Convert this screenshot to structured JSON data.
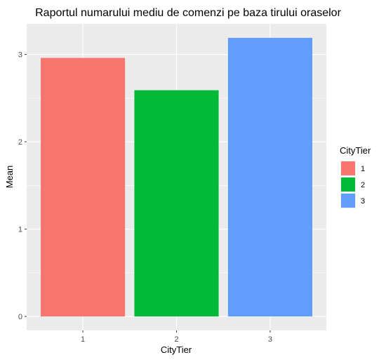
{
  "chart_data": {
    "type": "bar",
    "title": "Raportul numarului mediu de comenzi pe baza tirului oraselor",
    "xlabel": "CityTier",
    "ylabel": "Mean",
    "categories": [
      "1",
      "2",
      "3"
    ],
    "values": [
      2.96,
      2.59,
      3.19
    ],
    "colors": [
      "#F8766D",
      "#00BA38",
      "#619CFF"
    ],
    "ylim": [
      -0.16,
      3.35
    ],
    "yticks": [
      0,
      1,
      2,
      3
    ],
    "ytick_labels": [
      "0",
      "1",
      "2",
      "3"
    ],
    "grid": true,
    "legend": {
      "title": "CityTier",
      "entries": [
        "1",
        "2",
        "3"
      ],
      "placement": "right"
    }
  }
}
